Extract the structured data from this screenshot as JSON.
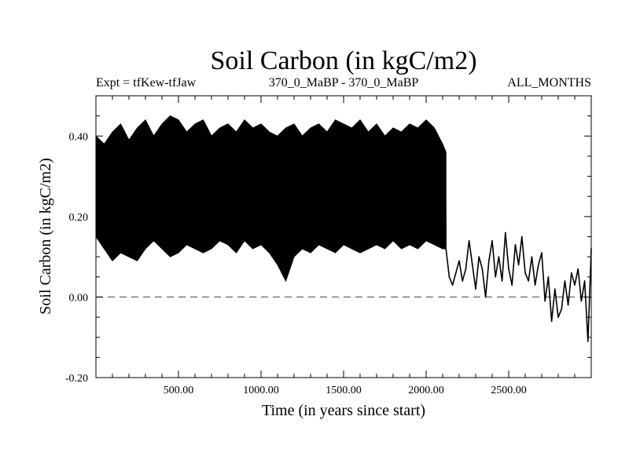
{
  "chart_data": {
    "type": "line",
    "title": "Soil Carbon (in kgC/m2)",
    "subtitle_left": "Expt = tfKew-tfJaw",
    "subtitle_center": "370_0_MaBP - 370_0_MaBP",
    "subtitle_right": "ALL_MONTHS",
    "xlabel": "Time (in years since start)",
    "ylabel": "Soil Carbon (in kgC/m2)",
    "xlim": [
      0,
      3000
    ],
    "ylim": [
      -0.2,
      0.5
    ],
    "x_ticks": [
      500,
      1000,
      1500,
      2000,
      2500
    ],
    "x_tick_labels": [
      "500.00",
      "1000.00",
      "1500.00",
      "2000.00",
      "2500.00"
    ],
    "y_ticks": [
      -0.2,
      0.0,
      0.2,
      0.4
    ],
    "y_tick_labels": [
      "-0.20",
      "0.00",
      "0.20",
      "0.40"
    ],
    "zero_line": {
      "y": 0.0,
      "style": "dashed"
    },
    "series": [
      {
        "color": "#000000",
        "envelope_x": [
          0,
          50,
          100,
          150,
          200,
          250,
          300,
          350,
          400,
          450,
          500,
          550,
          600,
          650,
          700,
          750,
          800,
          850,
          900,
          950,
          1000,
          1050,
          1100,
          1150,
          1200,
          1250,
          1300,
          1350,
          1400,
          1450,
          1500,
          1550,
          1600,
          1650,
          1700,
          1750,
          1800,
          1850,
          1900,
          1950,
          2000,
          2050,
          2100,
          2120
        ],
        "envelope_upper": [
          0.4,
          0.38,
          0.41,
          0.43,
          0.39,
          0.42,
          0.44,
          0.4,
          0.43,
          0.45,
          0.44,
          0.41,
          0.43,
          0.44,
          0.4,
          0.42,
          0.43,
          0.41,
          0.44,
          0.42,
          0.43,
          0.41,
          0.4,
          0.42,
          0.43,
          0.4,
          0.42,
          0.43,
          0.41,
          0.44,
          0.43,
          0.42,
          0.44,
          0.41,
          0.43,
          0.4,
          0.42,
          0.41,
          0.43,
          0.42,
          0.44,
          0.42,
          0.38,
          0.36
        ],
        "envelope_lower": [
          0.15,
          0.12,
          0.09,
          0.11,
          0.1,
          0.09,
          0.12,
          0.14,
          0.12,
          0.1,
          0.11,
          0.13,
          0.12,
          0.11,
          0.12,
          0.14,
          0.13,
          0.11,
          0.14,
          0.12,
          0.13,
          0.11,
          0.08,
          0.04,
          0.1,
          0.12,
          0.11,
          0.13,
          0.12,
          0.11,
          0.13,
          0.12,
          0.11,
          0.12,
          0.13,
          0.12,
          0.14,
          0.12,
          0.13,
          0.12,
          0.14,
          0.13,
          0.12,
          0.12
        ],
        "x": [
          2120,
          2140,
          2160,
          2180,
          2200,
          2220,
          2240,
          2260,
          2280,
          2300,
          2320,
          2340,
          2360,
          2380,
          2400,
          2420,
          2440,
          2460,
          2480,
          2500,
          2520,
          2540,
          2560,
          2580,
          2600,
          2620,
          2640,
          2660,
          2680,
          2700,
          2720,
          2740,
          2760,
          2780,
          2800,
          2820,
          2840,
          2860,
          2880,
          2900,
          2920,
          2940,
          2960,
          2980,
          3000
        ],
        "y": [
          0.12,
          0.05,
          0.03,
          0.06,
          0.09,
          0.04,
          0.07,
          0.14,
          0.08,
          0.02,
          0.1,
          0.07,
          0.0,
          0.09,
          0.14,
          0.05,
          0.1,
          0.04,
          0.16,
          0.07,
          0.03,
          0.13,
          0.08,
          0.15,
          0.06,
          0.04,
          0.1,
          0.03,
          0.08,
          0.11,
          -0.01,
          0.05,
          -0.06,
          0.02,
          -0.05,
          -0.03,
          0.04,
          -0.02,
          0.06,
          0.03,
          0.07,
          -0.01,
          0.04,
          -0.11,
          0.12
        ]
      }
    ]
  }
}
